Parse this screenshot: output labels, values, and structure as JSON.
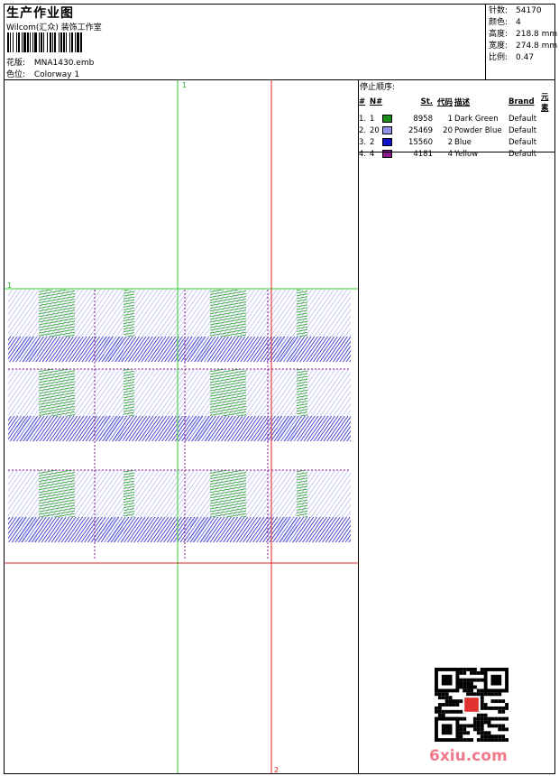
{
  "header": {
    "title": "生产作业图",
    "company": "Wilcom(汇众) 装饰工作室",
    "design_label": "花版:",
    "design_value": "MNA1430.emb",
    "colorway_label": "色位:",
    "colorway_value": "Colorway 1"
  },
  "stats": [
    {
      "label": "针数:",
      "value": "54170"
    },
    {
      "label": "颜色:",
      "value": "4"
    },
    {
      "label": "高度:",
      "value": "218.8 mm"
    },
    {
      "label": "宽度:",
      "value": "274.8 mm"
    },
    {
      "label": "比例:",
      "value": "0.47"
    }
  ],
  "color_sequence": {
    "title": "停止顺序:",
    "columns": [
      "#",
      "N#",
      "St.",
      "代码",
      "描述",
      "Brand",
      "元素"
    ],
    "rows": [
      {
        "idx": "1.",
        "n": "1",
        "color": "#1a8a1a",
        "st": "8958",
        "code": "1",
        "desc": "Dark Green",
        "brand": "Default"
      },
      {
        "idx": "2.",
        "n": "20",
        "color": "#8f93e8",
        "st": "25469",
        "code": "20",
        "desc": "Powder Blue",
        "brand": "Default"
      },
      {
        "idx": "3.",
        "n": "2",
        "color": "#1010c8",
        "st": "15560",
        "code": "2",
        "desc": "Blue",
        "brand": "Default"
      },
      {
        "idx": "4.",
        "n": "4",
        "color": "#8a1a8a",
        "st": "4181",
        "code": "4",
        "desc": "Yellow",
        "brand": "Default"
      }
    ]
  },
  "canvas": {
    "markers": [
      "1",
      "1",
      "2"
    ],
    "green_guide": "#33cc33",
    "red_guide": "#e02020"
  },
  "watermark": "6xiu.com"
}
